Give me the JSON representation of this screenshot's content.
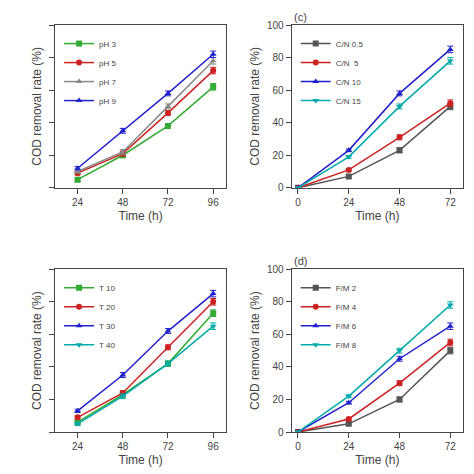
{
  "chart_data": [
    {
      "type": "line",
      "xlabel": "Time (h)",
      "ylabel": "COD removal rate (%)",
      "x": [
        24,
        48,
        72,
        96
      ],
      "xlim": [
        12,
        103
      ],
      "xticks": [
        24,
        48,
        72,
        96
      ],
      "ylim": [
        0,
        100
      ],
      "yticks": [
        0,
        20,
        40,
        60,
        80,
        100
      ],
      "tick_labels": "x",
      "grid": false,
      "legend": "upper left",
      "series": [
        {
          "name": "pH 3",
          "color": "#33aa33",
          "marker": "square",
          "values": [
            5,
            20,
            38,
            62
          ],
          "yerr": [
            1,
            1.5,
            1.5,
            2
          ]
        },
        {
          "name": "pH 5",
          "color": "#cc2222",
          "marker": "circle",
          "values": [
            9,
            21,
            46,
            72
          ],
          "yerr": [
            1,
            1.5,
            1.5,
            2
          ]
        },
        {
          "name": "pH 7",
          "color": "#888888",
          "marker": "triangle-up",
          "values": [
            10,
            22,
            50,
            78
          ],
          "yerr": [
            1,
            1.5,
            1.5,
            2
          ]
        },
        {
          "name": "pH 9",
          "color": "#2222cc",
          "marker": "triangle-up",
          "values": [
            12,
            35,
            58,
            82
          ],
          "yerr": [
            1,
            1.5,
            1.5,
            2
          ]
        }
      ]
    },
    {
      "type": "line",
      "title": "(c)",
      "xlabel": "Time (h)",
      "ylabel": "COD removal rate (%)",
      "x": [
        0,
        24,
        48,
        72
      ],
      "xlim": [
        -3,
        78
      ],
      "xticks": [
        0,
        24,
        48,
        72
      ],
      "ylim": [
        0,
        100
      ],
      "yticks": [
        0,
        20,
        40,
        60,
        80,
        100
      ],
      "grid": false,
      "legend": "upper left",
      "series": [
        {
          "name": "C/N 0.5",
          "color": "#555555",
          "marker": "square",
          "values": [
            0,
            7,
            23,
            50
          ],
          "yerr": [
            0,
            0.8,
            1.5,
            2
          ]
        },
        {
          "name": "C/N  5",
          "color": "#cc2222",
          "marker": "circle",
          "values": [
            0,
            11,
            31,
            52
          ],
          "yerr": [
            0,
            0.8,
            1.5,
            2
          ]
        },
        {
          "name": "C/N 10",
          "color": "#2222cc",
          "marker": "triangle-up",
          "values": [
            0,
            23,
            58,
            85
          ],
          "yerr": [
            0,
            0.8,
            1.5,
            2
          ]
        },
        {
          "name": "C/N 15",
          "color": "#00aaaa",
          "marker": "triangle-down",
          "values": [
            0,
            19,
            50,
            78
          ],
          "yerr": [
            0,
            0.8,
            1.5,
            2
          ]
        }
      ]
    },
    {
      "type": "line",
      "xlabel": "Time (h)",
      "ylabel": "COD removal rate (%)",
      "x": [
        24,
        48,
        72,
        96
      ],
      "xlim": [
        12,
        103
      ],
      "xticks": [
        24,
        48,
        72,
        96
      ],
      "ylim": [
        0,
        100
      ],
      "yticks": [
        0,
        20,
        40,
        60,
        80,
        100
      ],
      "tick_labels": "x",
      "grid": false,
      "legend": "upper left",
      "series": [
        {
          "name": "T 10",
          "color": "#33aa33",
          "marker": "square",
          "values": [
            6,
            23,
            42,
            73
          ],
          "yerr": [
            1,
            1.5,
            1.5,
            2
          ]
        },
        {
          "name": "T 20",
          "color": "#cc2222",
          "marker": "circle",
          "values": [
            9,
            24,
            52,
            80
          ],
          "yerr": [
            1,
            1.5,
            1.5,
            2
          ]
        },
        {
          "name": "T 30",
          "color": "#2222cc",
          "marker": "triangle-up",
          "values": [
            13,
            35,
            62,
            85
          ],
          "yerr": [
            1,
            1.5,
            1.5,
            2
          ]
        },
        {
          "name": "T 40",
          "color": "#00aaaa",
          "marker": "triangle-down",
          "values": [
            5,
            22,
            42,
            65
          ],
          "yerr": [
            1,
            1.5,
            1.5,
            2
          ]
        }
      ]
    },
    {
      "type": "line",
      "title": "(d)",
      "xlabel": "Time (h)",
      "ylabel": "COD removal rate (%)",
      "x": [
        0,
        24,
        48,
        72
      ],
      "xlim": [
        -3,
        78
      ],
      "xticks": [
        0,
        24,
        48,
        72
      ],
      "ylim": [
        0,
        100
      ],
      "yticks": [
        0,
        20,
        40,
        60,
        80,
        100
      ],
      "grid": false,
      "legend": "upper left",
      "series": [
        {
          "name": "F/M 2",
          "color": "#555555",
          "marker": "square",
          "values": [
            0,
            5,
            20,
            50
          ],
          "yerr": [
            0,
            0.8,
            1.5,
            2
          ]
        },
        {
          "name": "F/M 4",
          "color": "#cc2222",
          "marker": "circle",
          "values": [
            0,
            8,
            30,
            55
          ],
          "yerr": [
            0,
            0.8,
            1.5,
            2
          ]
        },
        {
          "name": "F/M 6",
          "color": "#2222cc",
          "marker": "triangle-up",
          "values": [
            0,
            18,
            45,
            65
          ],
          "yerr": [
            0,
            0.8,
            1.5,
            2
          ]
        },
        {
          "name": "F/M 8",
          "color": "#00aaaa",
          "marker": "triangle-down",
          "values": [
            0,
            22,
            50,
            78
          ],
          "yerr": [
            0,
            0.8,
            1.5,
            2
          ]
        }
      ]
    }
  ]
}
